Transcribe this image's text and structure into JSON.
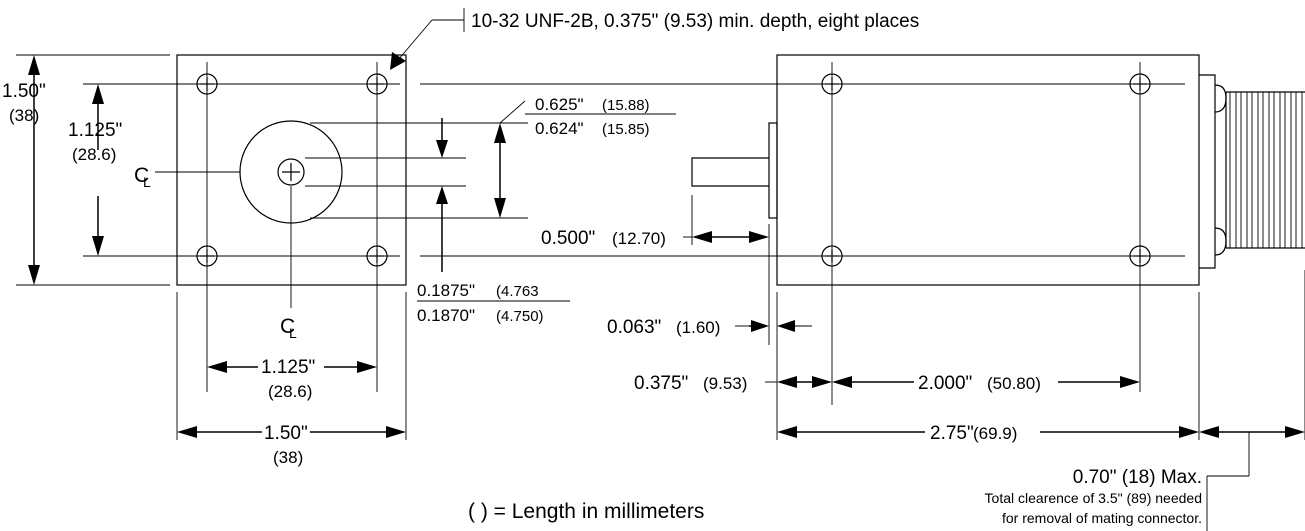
{
  "labels": {
    "thread_note": "10-32 UNF-2B, 0.375\" (9.53) min. depth, eight places",
    "height_in": "1.50\"",
    "height_mm": "(38)",
    "hole_v_in": "1.125\"",
    "hole_v_mm": "(28.6)",
    "bore_max_in": "0.625\"",
    "bore_max_mm": "(15.88)",
    "bore_min_in": "0.624\"",
    "bore_min_mm": "(15.85)",
    "shaft_max_in": "0.1875\"",
    "shaft_max_mm": "(4.763",
    "shaft_min_in": "0.1870\"",
    "shaft_min_mm": "(4.750)",
    "shaft_len_in": "0.500\"",
    "shaft_len_mm": "(12.70)",
    "flange_in": "0.063\"",
    "flange_mm": "(1.60)",
    "setback_in": "0.375\"",
    "setback_mm": "(9.53)",
    "hole_span_in": "2.000\"",
    "hole_span_mm": "(50.80)",
    "body_len_in": "2.75\"",
    "body_len_mm": "(69.9)",
    "hole_h_in": "1.125\"",
    "hole_h_mm": "(28.6)",
    "width_in": "1.50\"",
    "width_mm": "(38)",
    "connector": "0.70\" (18) Max.",
    "clearance_line1": "Total clearence of 3.5\" (89) needed",
    "clearance_line2": "for removal of mating connector.",
    "legend": "( ) = Length in millimeters",
    "centerline_symbol": "C",
    "centerline_sub": "L"
  }
}
